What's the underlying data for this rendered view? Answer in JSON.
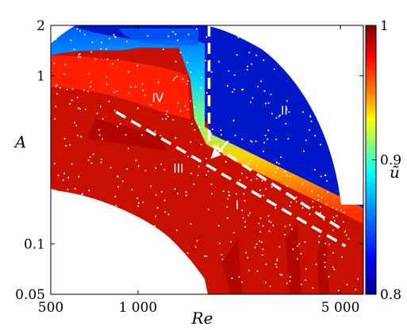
{
  "chart_data": {
    "type": "heatmap",
    "xlabel": "Re",
    "ylabel": "A",
    "x_scale": "log",
    "y_scale": "log",
    "xlim": [
      500,
      6000
    ],
    "ylim": [
      0.05,
      2
    ],
    "x_ticks": [
      {
        "value": 500,
        "label": "500"
      },
      {
        "value": 1000,
        "label": "1 000"
      },
      {
        "value": 5000,
        "label": "5 000"
      }
    ],
    "y_ticks": [
      {
        "value": 0.05,
        "label": "0.05"
      },
      {
        "value": 0.1,
        "label": "0.1"
      },
      {
        "value": 1,
        "label": "1"
      },
      {
        "value": 2,
        "label": "2"
      }
    ],
    "colorbar": {
      "label": "ũ",
      "range": [
        0.8,
        1
      ],
      "ticks": [
        {
          "value": 1,
          "label": "1"
        },
        {
          "value": 0.9,
          "label": "0.9"
        },
        {
          "value": 0.8,
          "label": "0.8"
        }
      ],
      "colormap": [
        "#00008f",
        "#0000ff",
        "#0080ff",
        "#00ffff",
        "#80ff80",
        "#ffff00",
        "#ff8000",
        "#ff0000",
        "#800000"
      ]
    },
    "region_labels": [
      {
        "text": "I",
        "re": 2200,
        "a": 0.17
      },
      {
        "text": "II",
        "re": 3200,
        "a": 0.62
      },
      {
        "text": "III",
        "re": 1380,
        "a": 0.28
      },
      {
        "text": "IV",
        "re": 1170,
        "a": 0.74
      }
    ],
    "boundary_lines": [
      {
        "style": "dashed",
        "points": [
          [
            1760,
            2.0
          ],
          [
            1760,
            0.4
          ],
          [
            5200,
            0.118
          ]
        ]
      },
      {
        "style": "dashed",
        "points": [
          [
            840,
            0.61
          ],
          [
            5200,
            0.097
          ]
        ]
      }
    ],
    "arrow": {
      "from": [
        2050,
        0.41
      ],
      "to": [
        1780,
        0.32
      ]
    }
  }
}
